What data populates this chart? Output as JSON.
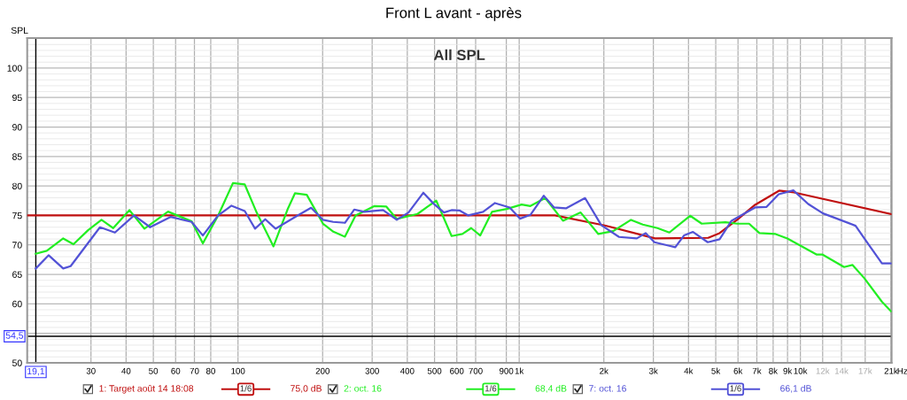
{
  "chart_data": {
    "type": "line",
    "title": "Front L avant - après",
    "ylabel": "SPL",
    "annotations": [
      "All SPL",
      "1/6",
      "75,0 dB",
      "1/6",
      "68,4 dB",
      "1/6",
      "66,1 dB"
    ],
    "xlabel": "Hz",
    "xlim": [
      17.8,
      21100
    ],
    "ylim": [
      50,
      105.1
    ],
    "log": "x",
    "grid": true,
    "legend": "bottom",
    "line_style": "solid",
    "xticks": [
      30,
      40,
      50,
      60,
      70,
      80,
      100,
      200,
      300,
      400,
      500,
      600,
      700,
      900,
      {
        "value": 1000,
        "label": "1k"
      },
      {
        "value": 2000,
        "label": "2k"
      },
      {
        "value": 3000,
        "label": "3k"
      },
      {
        "value": 4000,
        "label": "4k"
      },
      {
        "value": 5000,
        "label": "5k"
      },
      {
        "value": 6000,
        "label": "6k"
      },
      {
        "value": 7000,
        "label": "7k"
      },
      {
        "value": 8000,
        "label": "8k"
      },
      {
        "value": 9000,
        "label": "9k"
      },
      {
        "value": 10000,
        "label": "10k"
      },
      {
        "value": 12000,
        "label": "12k"
      },
      {
        "value": 14000,
        "label": "14k"
      },
      {
        "value": 17000,
        "label": "17k"
      },
      {
        "value": 21000,
        "label": "21k"
      }
    ],
    "yticks": [
      50,
      {
        "value": 55,
        "label": null
      },
      60,
      65,
      70,
      75,
      80,
      85,
      90,
      95,
      100
    ],
    "ref_lines": [
      {
        "axis": "x",
        "value": 19.1,
        "label": "19,1",
        "color": "#000000"
      },
      {
        "axis": "y",
        "value": 54.5,
        "label": "54,5",
        "color": "#000000"
      }
    ],
    "series": [
      {
        "name": "1: Target août 14 18:08",
        "color": "#c01010",
        "x": [
          17.8,
          1340,
          2014,
          3040,
          4700,
          5160,
          5970,
          6900,
          8400,
          9500,
          21100
        ],
        "values": [
          75,
          75,
          73.3,
          71.1,
          71.2,
          72.0,
          74.3,
          76.8,
          79.2,
          78.9,
          75.2
        ]
      },
      {
        "name": "2: oct. 16",
        "color": "#22ee22",
        "x": [
          19.1,
          20.9,
          23.9,
          26.0,
          29.3,
          32.7,
          36.0,
          41.1,
          46.5,
          56.4,
          68.4,
          75.0,
          85.0,
          96.0,
          105.7,
          116.5,
          133.7,
          150,
          159.4,
          175.6,
          200.6,
          218.3,
          240,
          262,
          306,
          337,
          367,
          435,
          473,
          507,
          575,
          628,
          675,
          727,
          800,
          903,
          1020,
          1096,
          1238,
          1431,
          1654,
          1912,
          2160,
          2498,
          2751,
          3103,
          3420,
          4053,
          4458,
          5410,
          5960,
          6570,
          7150,
          8160,
          8990,
          11440,
          12000,
          14300,
          15330,
          16880,
          19500,
          21000
        ],
        "values": [
          68.5,
          69.0,
          71.1,
          70.1,
          72.5,
          74.25,
          72.85,
          75.9,
          72.75,
          75.65,
          74.0,
          70.25,
          75.0,
          80.5,
          80.25,
          75.5,
          69.75,
          76.0,
          78.75,
          78.5,
          73.6,
          72.25,
          71.4,
          75.0,
          76.6,
          76.5,
          74.4,
          75.25,
          76.5,
          77.5,
          71.5,
          71.85,
          72.85,
          71.6,
          75.6,
          76.1,
          76.85,
          76.6,
          77.95,
          74.1,
          75.5,
          71.85,
          72.35,
          74.25,
          73.45,
          72.85,
          72.1,
          74.95,
          73.6,
          73.85,
          73.6,
          73.6,
          72.0,
          71.85,
          71.1,
          68.35,
          68.35,
          66.25,
          66.6,
          64.35,
          60.35,
          58.75
        ]
      },
      {
        "name": "7: oct. 16",
        "color": "#5252d6",
        "x": [
          19.1,
          21.2,
          23.9,
          25.4,
          32.3,
          36.5,
          42.7,
          48.7,
          57.7,
          68.4,
          75.0,
          85.0,
          94.8,
          105.7,
          115,
          125,
          136,
          163,
          182,
          200.6,
          218,
          240,
          259,
          281,
          328,
          367,
          404,
          456,
          496,
          540,
          575,
          613,
          659,
          744,
          820,
          925,
          1007,
          1096,
          1223,
          1331,
          1466,
          1715,
          1958,
          2265,
          2620,
          2818,
          3027,
          3420,
          3590,
          3856,
          4150,
          4684,
          5160,
          5690,
          6900,
          7580,
          8370,
          9440,
          10660,
          12030,
          13250,
          15710,
          17310,
          19500,
          21000
        ],
        "values": [
          66.0,
          68.25,
          66.0,
          66.4,
          73.0,
          72.1,
          75.0,
          73.0,
          74.75,
          73.9,
          71.6,
          75.0,
          76.65,
          75.75,
          72.75,
          74.35,
          72.75,
          75.0,
          76.3,
          74.25,
          73.9,
          73.75,
          76.0,
          75.6,
          75.9,
          74.25,
          75.5,
          78.85,
          77.0,
          75.5,
          75.9,
          75.85,
          75.0,
          75.6,
          77.1,
          76.35,
          74.45,
          75.1,
          78.35,
          76.35,
          76.2,
          77.95,
          73.35,
          71.35,
          71.1,
          72.0,
          70.45,
          69.85,
          69.6,
          71.6,
          72.2,
          70.45,
          70.95,
          74.1,
          76.35,
          76.45,
          78.6,
          79.25,
          76.95,
          75.35,
          74.6,
          73.25,
          70.35,
          66.85,
          66.85
        ]
      }
    ]
  }
}
